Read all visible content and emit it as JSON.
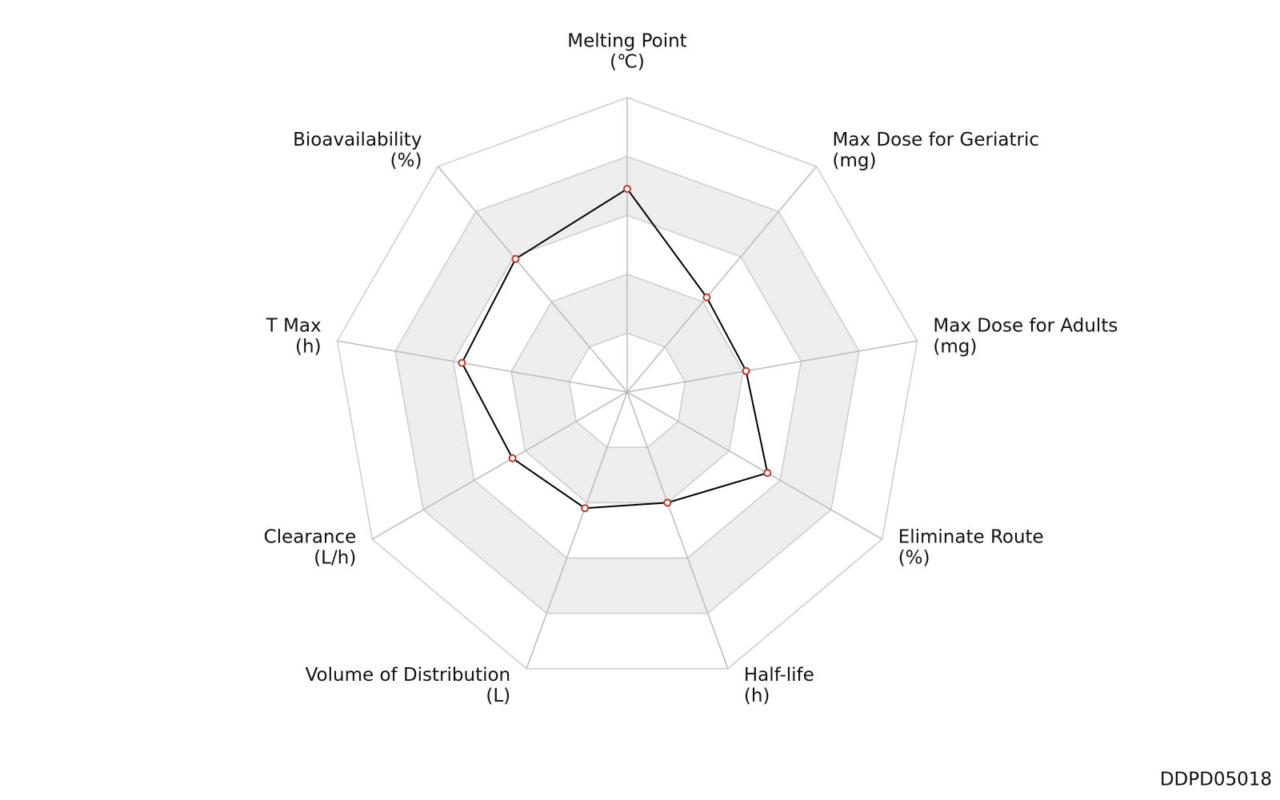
{
  "chart_data": {
    "type": "radar",
    "categories": [
      "Melting Point",
      "Max Dose for Geriatric",
      "Max Dose for Adults",
      "Eliminate Route",
      "Half-life",
      "Volume of Distribution",
      "Clearance",
      "T Max",
      "Bioavailability"
    ],
    "units": [
      "(℃)",
      "(mg)",
      "(mg)",
      "(%)",
      "(h)",
      "(L)",
      "(L/h)",
      "(h)",
      "(%)"
    ],
    "series": [
      {
        "color": "#000000",
        "marker_color": "#c0392b",
        "values": [
          0.69,
          0.42,
          0.41,
          0.55,
          0.4,
          0.42,
          0.45,
          0.57,
          0.59
        ]
      }
    ],
    "ylim": [
      0,
      1
    ],
    "yticks": [
      0.2,
      0.4,
      0.6,
      0.8,
      1
    ],
    "grid": true,
    "band_colors": [
      "#ffffff",
      "#eeeeee"
    ],
    "watermark": "DDPD05018"
  }
}
